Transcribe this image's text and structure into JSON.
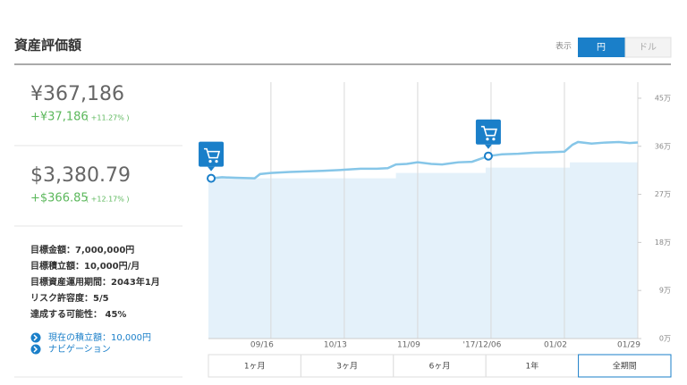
{
  "header": {
    "title": "資産評価額",
    "display_label": "表示",
    "currency_options": [
      "円",
      "ドル"
    ]
  },
  "summary": {
    "yen": {
      "value": "¥367,186",
      "change": "+¥37,186",
      "change_pct": "( +11.27% )"
    },
    "usd": {
      "value": "$3,380.79",
      "change": "+$366.85",
      "change_pct": "( +12.17% )"
    }
  },
  "goals": [
    "目標金額：7,000,000円",
    "目標積立額：10,000円/月",
    "目標資産運用期間：2043年1月",
    "リスク許容度：5/5",
    "達成する可能性： 45%"
  ],
  "links": [
    "現在の積立額：10,000円",
    "ナビゲーション"
  ],
  "chart_data": {
    "type": "line",
    "series": [
      {
        "color": "#86c6e8",
        "x": [
          1,
          5,
          10,
          17,
          19,
          23,
          30,
          36,
          42,
          50,
          56,
          62,
          66,
          69,
          73,
          77,
          82,
          86,
          92,
          97,
          103,
          108,
          114,
          120,
          126,
          131,
          134,
          136,
          141,
          146,
          151,
          155,
          158
        ],
        "values": [
          300000,
          302000,
          301000,
          300000,
          308000,
          310000,
          312000,
          313000,
          314000,
          316000,
          318000,
          318000,
          319000,
          326000,
          327000,
          330000,
          327000,
          326000,
          330000,
          331000,
          341700,
          345000,
          346000,
          348000,
          349000,
          350000,
          363000,
          368000,
          365000,
          367000,
          368000,
          366000,
          367186
        ]
      },
      {
        "color": "#e4f1fa",
        "x": [
          0,
          69,
          69,
          102,
          102,
          133,
          133,
          158
        ],
        "values": [
          300000,
          300000,
          310000,
          310000,
          320000,
          320000,
          330000,
          330000
        ]
      }
    ],
    "xlim": [
      0,
      158
    ],
    "xticks": [
      {
        "value": 23,
        "label": "09/16"
      },
      {
        "value": 50,
        "label": "10/13"
      },
      {
        "value": 77,
        "label": "11/09"
      },
      {
        "value": 104,
        "label": "'17/12/06"
      },
      {
        "value": 131,
        "label": "01/02"
      },
      {
        "value": 158,
        "label": "01/29"
      }
    ],
    "ylim": [
      0,
      480000
    ],
    "yticks": [
      {
        "value": 0,
        "label": "0万"
      },
      {
        "value": 90000,
        "label": "9万"
      },
      {
        "value": 180000,
        "label": "18万"
      },
      {
        "value": 270000,
        "label": "27万"
      },
      {
        "value": 360000,
        "label": "36万"
      },
      {
        "value": 450000,
        "label": "45万"
      }
    ],
    "grid": true
  },
  "range_buttons": [
    "1ヶ月",
    "3ヶ月",
    "6ヶ月",
    "1年",
    "全期間"
  ]
}
